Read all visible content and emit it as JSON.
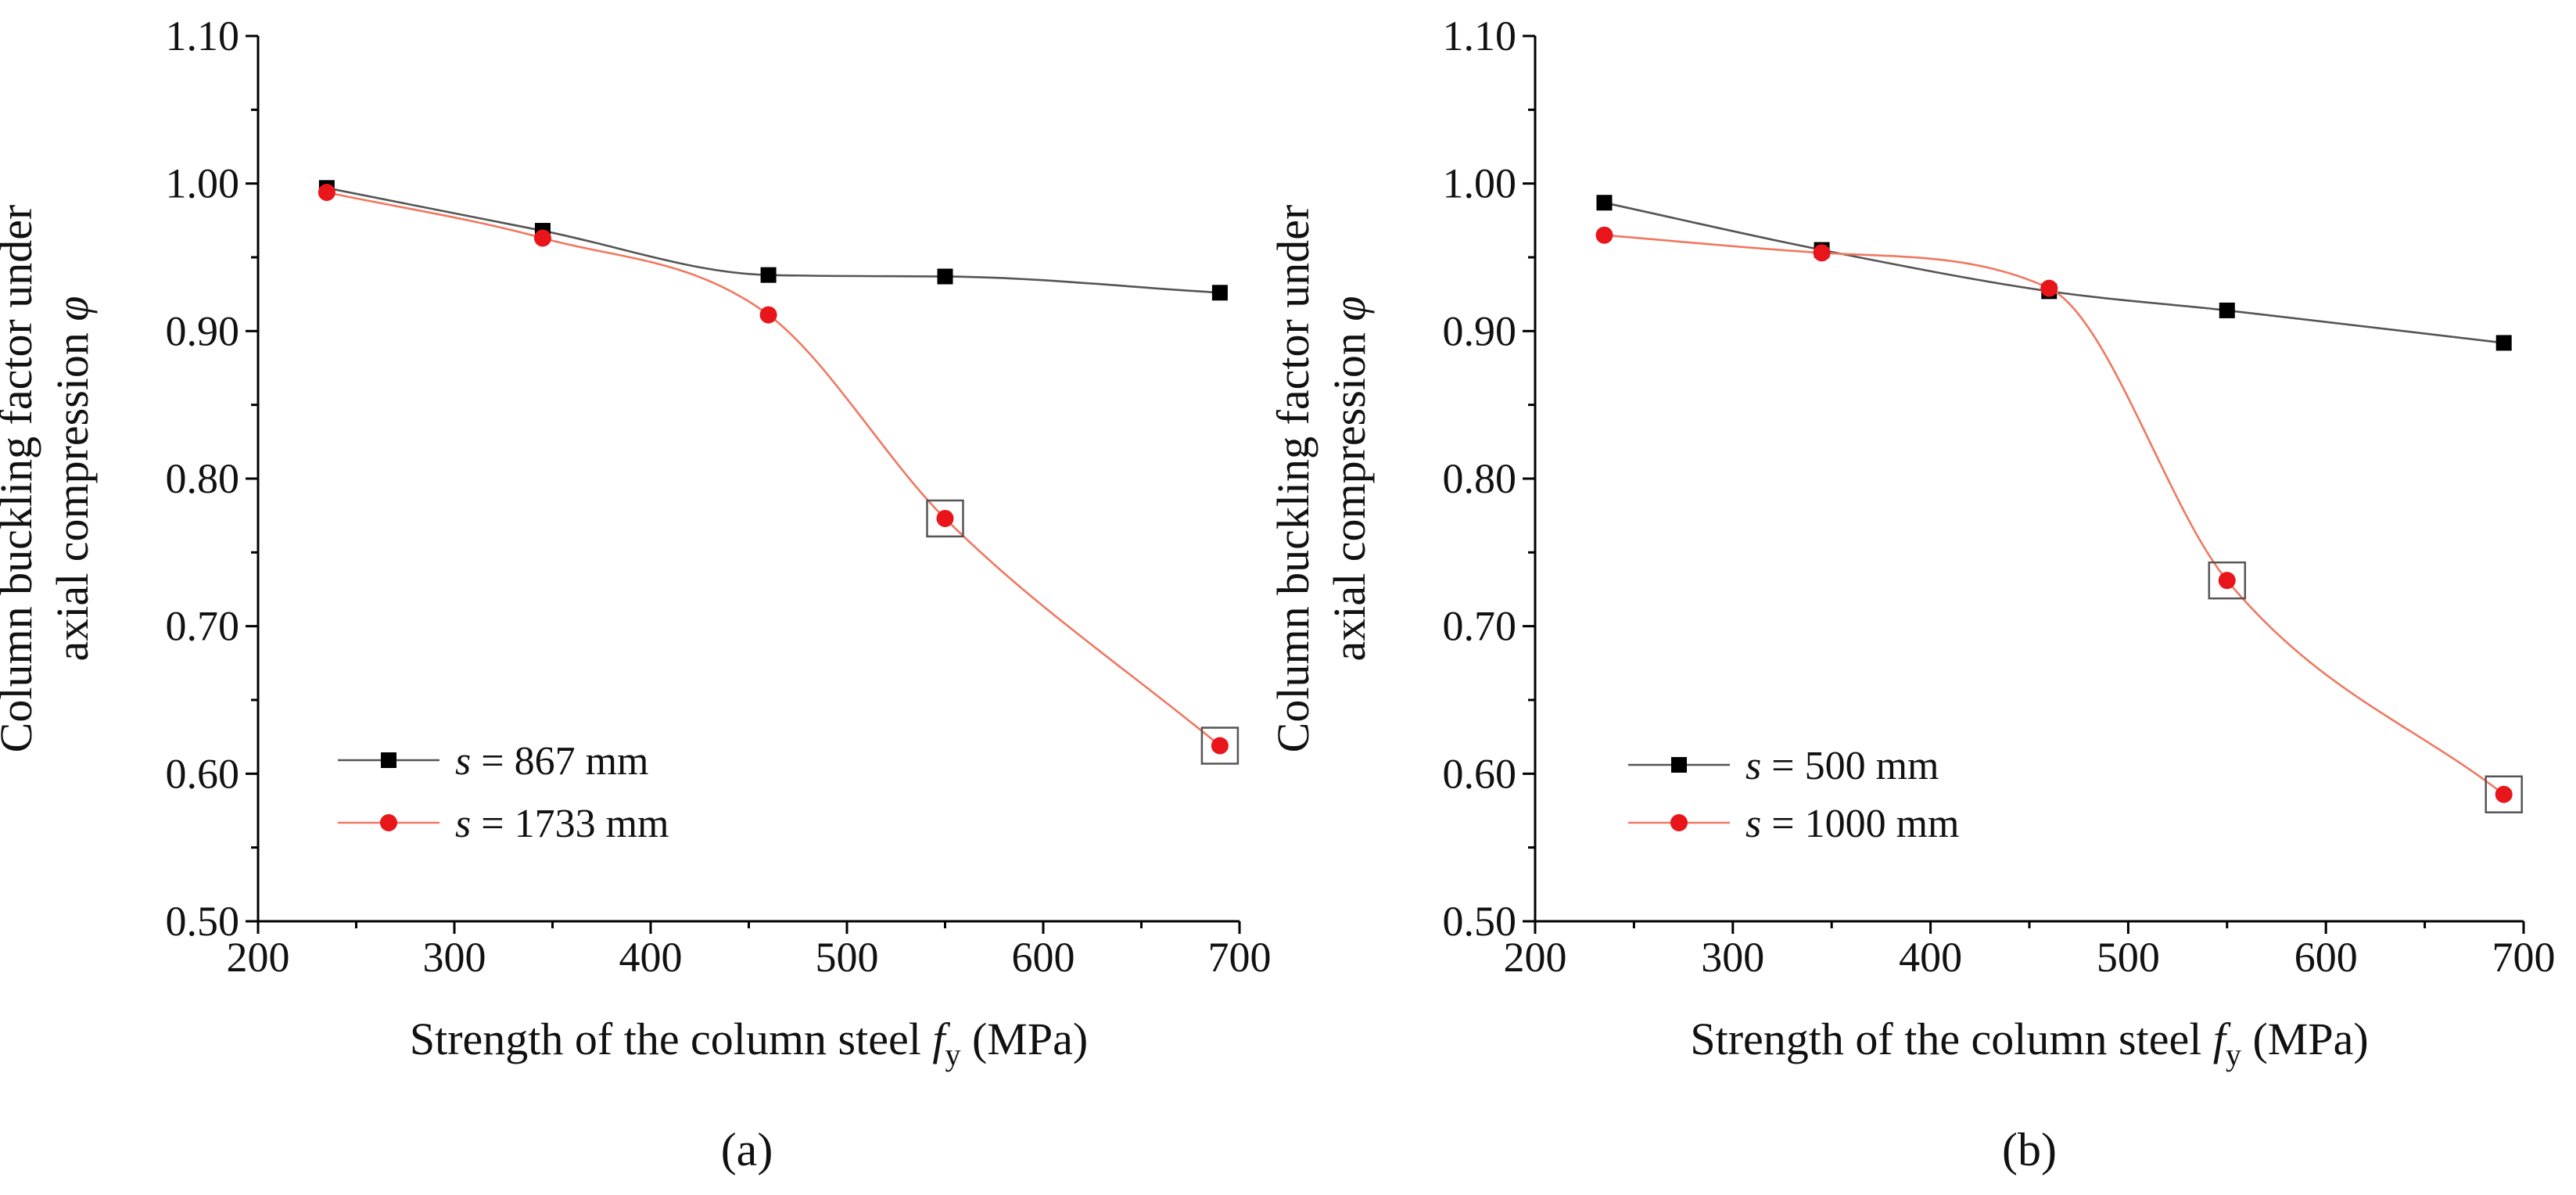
{
  "chart_data": [
    {
      "type": "line",
      "panel_label": "(a)",
      "xlabel": {
        "main": "Strength of the column steel ",
        "symbol": "f",
        "subscript": "y",
        "unit": " (MPa)"
      },
      "ylabel": {
        "line1": "Column buckling factor under",
        "line2": "axial compression ",
        "symbol": "φ"
      },
      "xlim": [
        200,
        700
      ],
      "ylim": [
        0.5,
        1.1
      ],
      "xticks": [
        "200",
        "300",
        "400",
        "500",
        "600",
        "700"
      ],
      "yticks": [
        "0.50",
        "0.60",
        "0.70",
        "0.80",
        "0.90",
        "1.00",
        "1.10"
      ],
      "legend_position": "bottom-left",
      "series": [
        {
          "name_prefix": "s",
          "name_rest": " = 867 mm",
          "marker": "square",
          "color": "#000000",
          "line_color": "#555555",
          "x": [
            235,
            345,
            460,
            550,
            690
          ],
          "y": [
            0.997,
            0.968,
            0.938,
            0.937,
            0.926
          ]
        },
        {
          "name_prefix": "s",
          "name_rest": " = 1733 mm",
          "marker": "circle",
          "color": "#e8161b",
          "line_color": "#f07860",
          "x": [
            235,
            345,
            460,
            550,
            690
          ],
          "y": [
            0.994,
            0.963,
            0.911,
            0.773,
            0.619
          ]
        }
      ],
      "highlighted": [
        {
          "x": 550,
          "y": 0.773
        },
        {
          "x": 690,
          "y": 0.619
        }
      ]
    },
    {
      "type": "line",
      "panel_label": "(b)",
      "xlabel": {
        "main": "Strength of the column steel ",
        "symbol": "f",
        "subscript": "y",
        "unit": " (MPa)"
      },
      "ylabel": {
        "line1": "Column buckling factor under",
        "line2": "axial compression ",
        "symbol": "φ"
      },
      "xlim": [
        200,
        700
      ],
      "ylim": [
        0.5,
        1.1
      ],
      "xticks": [
        "200",
        "300",
        "400",
        "500",
        "600",
        "700"
      ],
      "yticks": [
        "0.50",
        "0.60",
        "0.70",
        "0.80",
        "0.90",
        "1.00",
        "1.10"
      ],
      "legend_position": "bottom-left",
      "series": [
        {
          "name_prefix": "s",
          "name_rest": " = 500 mm",
          "marker": "square",
          "color": "#000000",
          "line_color": "#555555",
          "x": [
            235,
            345,
            460,
            550,
            690
          ],
          "y": [
            0.987,
            0.955,
            0.927,
            0.914,
            0.892
          ]
        },
        {
          "name_prefix": "s",
          "name_rest": " = 1000 mm",
          "marker": "circle",
          "color": "#e8161b",
          "line_color": "#f07860",
          "x": [
            235,
            345,
            460,
            550,
            690
          ],
          "y": [
            0.965,
            0.953,
            0.929,
            0.731,
            0.586
          ]
        }
      ],
      "highlighted": [
        {
          "x": 550,
          "y": 0.731
        },
        {
          "x": 690,
          "y": 0.586
        }
      ]
    }
  ]
}
